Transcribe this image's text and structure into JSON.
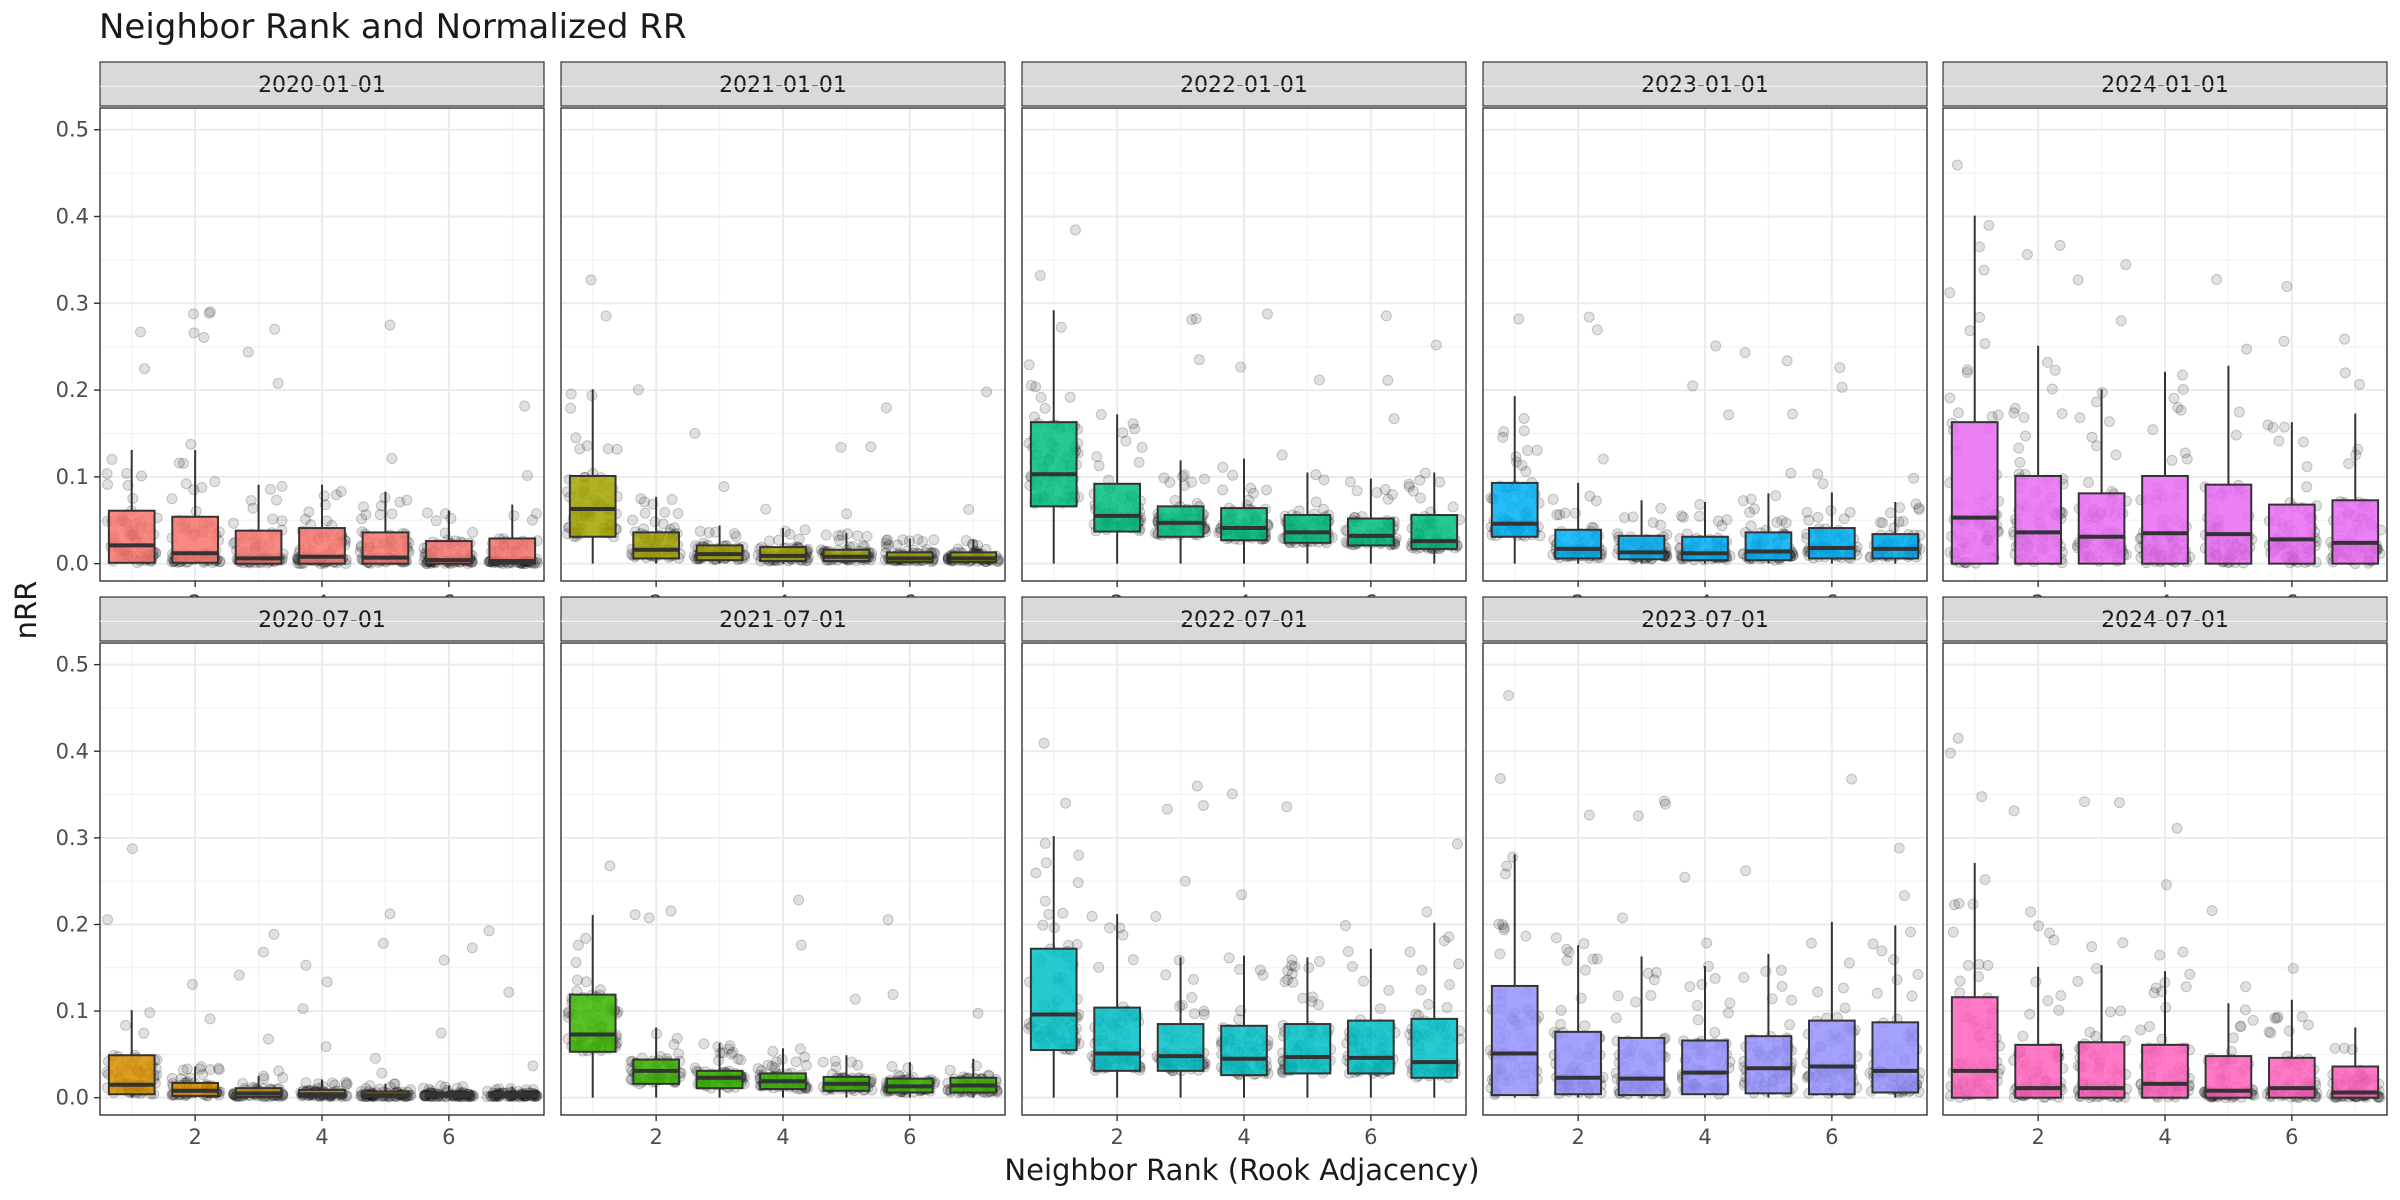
{
  "chart_data": {
    "type": "box",
    "title": "Neighbor Rank and Normalized RR",
    "xlabel": "Neighbor Rank (Rook Adjacency)",
    "ylabel": "nRR",
    "xlim": [
      0.5,
      7.5
    ],
    "ylim": [
      -0.02,
      0.525
    ],
    "x_ticks": [
      2,
      4,
      6
    ],
    "y_ticks": [
      0.0,
      0.1,
      0.2,
      0.3,
      0.4,
      0.5
    ],
    "y_tick_labels": [
      "0.0",
      "0.1",
      "0.2",
      "0.3",
      "0.4",
      "0.5"
    ],
    "grid": true,
    "legend": "none",
    "facets": [
      {
        "label": "2020-01-01",
        "color": "#F8766D",
        "boxes": [
          {
            "rank": 1,
            "q1": 0.001,
            "median": 0.021,
            "q3": 0.061,
            "whisker_high": 0.131
          },
          {
            "rank": 2,
            "q1": 0.001,
            "median": 0.012,
            "q3": 0.054,
            "whisker_high": 0.131
          },
          {
            "rank": 3,
            "q1": 0.0,
            "median": 0.006,
            "q3": 0.038,
            "whisker_high": 0.091
          },
          {
            "rank": 4,
            "q1": 0.0,
            "median": 0.008,
            "q3": 0.041,
            "whisker_high": 0.091
          },
          {
            "rank": 5,
            "q1": 0.0,
            "median": 0.007,
            "q3": 0.036,
            "whisker_high": 0.083
          },
          {
            "rank": 6,
            "q1": 0.0,
            "median": 0.004,
            "q3": 0.026,
            "whisker_high": 0.061
          },
          {
            "rank": 7,
            "q1": 0.0,
            "median": 0.003,
            "q3": 0.029,
            "whisker_high": 0.068
          }
        ]
      },
      {
        "label": "2021-01-01",
        "color": "#A3A500",
        "boxes": [
          {
            "rank": 1,
            "q1": 0.031,
            "median": 0.063,
            "q3": 0.101,
            "whisker_high": 0.201
          },
          {
            "rank": 2,
            "q1": 0.006,
            "median": 0.016,
            "q3": 0.036,
            "whisker_high": 0.077
          },
          {
            "rank": 3,
            "q1": 0.004,
            "median": 0.011,
            "q3": 0.021,
            "whisker_high": 0.044
          },
          {
            "rank": 4,
            "q1": 0.003,
            "median": 0.009,
            "q3": 0.019,
            "whisker_high": 0.041
          },
          {
            "rank": 5,
            "q1": 0.003,
            "median": 0.008,
            "q3": 0.016,
            "whisker_high": 0.035
          },
          {
            "rank": 6,
            "q1": 0.002,
            "median": 0.006,
            "q3": 0.013,
            "whisker_high": 0.029
          },
          {
            "rank": 7,
            "q1": 0.002,
            "median": 0.006,
            "q3": 0.013,
            "whisker_high": 0.028
          }
        ]
      },
      {
        "label": "2022-01-01",
        "color": "#00BF7D",
        "boxes": [
          {
            "rank": 1,
            "q1": 0.066,
            "median": 0.103,
            "q3": 0.163,
            "whisker_high": 0.292
          },
          {
            "rank": 2,
            "q1": 0.037,
            "median": 0.055,
            "q3": 0.092,
            "whisker_high": 0.172
          },
          {
            "rank": 3,
            "q1": 0.031,
            "median": 0.047,
            "q3": 0.066,
            "whisker_high": 0.119
          },
          {
            "rank": 4,
            "q1": 0.027,
            "median": 0.041,
            "q3": 0.064,
            "whisker_high": 0.121
          },
          {
            "rank": 5,
            "q1": 0.024,
            "median": 0.036,
            "q3": 0.056,
            "whisker_high": 0.105
          },
          {
            "rank": 6,
            "q1": 0.021,
            "median": 0.032,
            "q3": 0.052,
            "whisker_high": 0.098
          },
          {
            "rank": 7,
            "q1": 0.017,
            "median": 0.026,
            "q3": 0.056,
            "whisker_high": 0.105
          }
        ]
      },
      {
        "label": "2023-01-01",
        "color": "#00B0F6",
        "boxes": [
          {
            "rank": 1,
            "q1": 0.031,
            "median": 0.046,
            "q3": 0.093,
            "whisker_high": 0.193
          },
          {
            "rank": 2,
            "q1": 0.006,
            "median": 0.017,
            "q3": 0.039,
            "whisker_high": 0.093
          },
          {
            "rank": 3,
            "q1": 0.005,
            "median": 0.013,
            "q3": 0.032,
            "whisker_high": 0.073
          },
          {
            "rank": 4,
            "q1": 0.004,
            "median": 0.012,
            "q3": 0.031,
            "whisker_high": 0.071
          },
          {
            "rank": 5,
            "q1": 0.004,
            "median": 0.014,
            "q3": 0.036,
            "whisker_high": 0.081
          },
          {
            "rank": 6,
            "q1": 0.006,
            "median": 0.018,
            "q3": 0.041,
            "whisker_high": 0.082
          },
          {
            "rank": 7,
            "q1": 0.006,
            "median": 0.017,
            "q3": 0.034,
            "whisker_high": 0.071
          }
        ]
      },
      {
        "label": "2024-01-01",
        "color": "#E76BF3",
        "boxes": [
          {
            "rank": 1,
            "q1": 0.0,
            "median": 0.053,
            "q3": 0.163,
            "whisker_high": 0.401
          },
          {
            "rank": 2,
            "q1": 0.0,
            "median": 0.036,
            "q3": 0.101,
            "whisker_high": 0.251
          },
          {
            "rank": 3,
            "q1": 0.0,
            "median": 0.031,
            "q3": 0.081,
            "whisker_high": 0.201
          },
          {
            "rank": 4,
            "q1": 0.0,
            "median": 0.035,
            "q3": 0.101,
            "whisker_high": 0.221
          },
          {
            "rank": 5,
            "q1": 0.0,
            "median": 0.034,
            "q3": 0.091,
            "whisker_high": 0.228
          },
          {
            "rank": 6,
            "q1": 0.0,
            "median": 0.028,
            "q3": 0.068,
            "whisker_high": 0.163
          },
          {
            "rank": 7,
            "q1": 0.0,
            "median": 0.024,
            "q3": 0.073,
            "whisker_high": 0.173
          }
        ]
      },
      {
        "label": "2020-07-01",
        "color": "#D89000",
        "boxes": [
          {
            "rank": 1,
            "q1": 0.004,
            "median": 0.015,
            "q3": 0.049,
            "whisker_high": 0.101
          },
          {
            "rank": 2,
            "q1": 0.002,
            "median": 0.008,
            "q3": 0.017,
            "whisker_high": 0.036
          },
          {
            "rank": 3,
            "q1": 0.001,
            "median": 0.005,
            "q3": 0.011,
            "whisker_high": 0.025
          },
          {
            "rank": 4,
            "q1": 0.001,
            "median": 0.004,
            "q3": 0.009,
            "whisker_high": 0.021
          },
          {
            "rank": 5,
            "q1": 0.001,
            "median": 0.003,
            "q3": 0.007,
            "whisker_high": 0.016
          },
          {
            "rank": 6,
            "q1": 0.001,
            "median": 0.003,
            "q3": 0.006,
            "whisker_high": 0.014
          },
          {
            "rank": 7,
            "q1": 0.001,
            "median": 0.003,
            "q3": 0.006,
            "whisker_high": 0.013
          }
        ]
      },
      {
        "label": "2021-07-01",
        "color": "#39B600",
        "boxes": [
          {
            "rank": 1,
            "q1": 0.053,
            "median": 0.073,
            "q3": 0.119,
            "whisker_high": 0.211
          },
          {
            "rank": 2,
            "q1": 0.016,
            "median": 0.031,
            "q3": 0.044,
            "whisker_high": 0.081
          },
          {
            "rank": 3,
            "q1": 0.011,
            "median": 0.023,
            "q3": 0.031,
            "whisker_high": 0.063
          },
          {
            "rank": 4,
            "q1": 0.01,
            "median": 0.019,
            "q3": 0.028,
            "whisker_high": 0.057
          },
          {
            "rank": 5,
            "q1": 0.008,
            "median": 0.016,
            "q3": 0.024,
            "whisker_high": 0.049
          },
          {
            "rank": 6,
            "q1": 0.006,
            "median": 0.013,
            "q3": 0.022,
            "whisker_high": 0.041
          },
          {
            "rank": 7,
            "q1": 0.006,
            "median": 0.014,
            "q3": 0.023,
            "whisker_high": 0.045
          }
        ]
      },
      {
        "label": "2022-07-01",
        "color": "#00BFC4",
        "boxes": [
          {
            "rank": 1,
            "q1": 0.055,
            "median": 0.096,
            "q3": 0.172,
            "whisker_high": 0.302
          },
          {
            "rank": 2,
            "q1": 0.031,
            "median": 0.051,
            "q3": 0.104,
            "whisker_high": 0.212
          },
          {
            "rank": 3,
            "q1": 0.031,
            "median": 0.048,
            "q3": 0.085,
            "whisker_high": 0.162
          },
          {
            "rank": 4,
            "q1": 0.026,
            "median": 0.045,
            "q3": 0.083,
            "whisker_high": 0.164
          },
          {
            "rank": 5,
            "q1": 0.028,
            "median": 0.047,
            "q3": 0.085,
            "whisker_high": 0.162
          },
          {
            "rank": 6,
            "q1": 0.028,
            "median": 0.046,
            "q3": 0.089,
            "whisker_high": 0.172
          },
          {
            "rank": 7,
            "q1": 0.023,
            "median": 0.041,
            "q3": 0.091,
            "whisker_high": 0.202
          }
        ]
      },
      {
        "label": "2023-07-01",
        "color": "#9590FF",
        "boxes": [
          {
            "rank": 1,
            "q1": 0.003,
            "median": 0.051,
            "q3": 0.129,
            "whisker_high": 0.281
          },
          {
            "rank": 2,
            "q1": 0.004,
            "median": 0.023,
            "q3": 0.076,
            "whisker_high": 0.176
          },
          {
            "rank": 3,
            "q1": 0.003,
            "median": 0.022,
            "q3": 0.069,
            "whisker_high": 0.163
          },
          {
            "rank": 4,
            "q1": 0.004,
            "median": 0.029,
            "q3": 0.066,
            "whisker_high": 0.152
          },
          {
            "rank": 5,
            "q1": 0.005,
            "median": 0.034,
            "q3": 0.071,
            "whisker_high": 0.166
          },
          {
            "rank": 6,
            "q1": 0.004,
            "median": 0.036,
            "q3": 0.089,
            "whisker_high": 0.203
          },
          {
            "rank": 7,
            "q1": 0.006,
            "median": 0.031,
            "q3": 0.087,
            "whisker_high": 0.199
          }
        ]
      },
      {
        "label": "2024-07-01",
        "color": "#FF62BC",
        "boxes": [
          {
            "rank": 1,
            "q1": 0.0,
            "median": 0.031,
            "q3": 0.116,
            "whisker_high": 0.271
          },
          {
            "rank": 2,
            "q1": 0.0,
            "median": 0.011,
            "q3": 0.061,
            "whisker_high": 0.151
          },
          {
            "rank": 3,
            "q1": 0.0,
            "median": 0.011,
            "q3": 0.064,
            "whisker_high": 0.153
          },
          {
            "rank": 4,
            "q1": 0.0,
            "median": 0.016,
            "q3": 0.061,
            "whisker_high": 0.146
          },
          {
            "rank": 5,
            "q1": 0.0,
            "median": 0.008,
            "q3": 0.048,
            "whisker_high": 0.109
          },
          {
            "rank": 6,
            "q1": 0.0,
            "median": 0.011,
            "q3": 0.046,
            "whisker_high": 0.113
          },
          {
            "rank": 7,
            "q1": 0.0,
            "median": 0.006,
            "q3": 0.036,
            "whisker_high": 0.081
          }
        ]
      }
    ]
  }
}
